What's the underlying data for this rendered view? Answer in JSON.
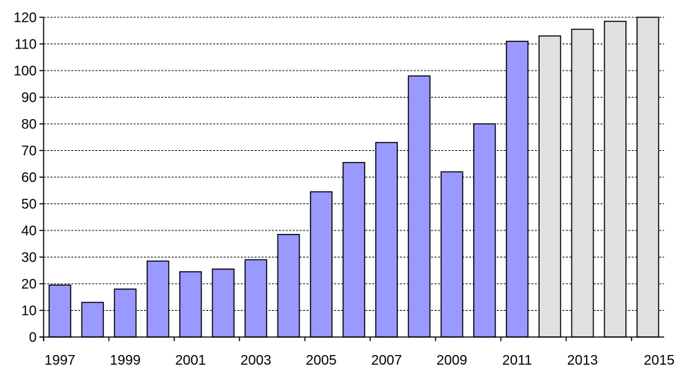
{
  "chart_data": {
    "type": "bar",
    "categories": [
      "1997",
      "1998",
      "1999",
      "2000",
      "2001",
      "2002",
      "2003",
      "2004",
      "2005",
      "2006",
      "2007",
      "2008",
      "2009",
      "2010",
      "2011",
      "2012",
      "2013",
      "2014",
      "2015"
    ],
    "tick_labels": [
      "1997",
      "1999",
      "2001",
      "2003",
      "2005",
      "2007",
      "2009",
      "2011",
      "2013",
      "2015"
    ],
    "series": [
      {
        "values": [
          19.5,
          13,
          18,
          28.5,
          24.5,
          25.5,
          29,
          38.5,
          54.5,
          65.5,
          73,
          98,
          62,
          80,
          111,
          null,
          null,
          null,
          null
        ]
      },
      {
        "values": [
          null,
          null,
          null,
          null,
          null,
          null,
          null,
          null,
          null,
          null,
          null,
          null,
          null,
          null,
          null,
          113,
          115.5,
          118.5,
          120
        ]
      }
    ],
    "colors": {
      "actual": "#9999FF",
      "projected": "#E0E0E0",
      "outline": "#000000",
      "grid": "#000000"
    },
    "title": "",
    "xlabel": "",
    "ylabel": "",
    "ylim": [
      0,
      120
    ],
    "yticks": [
      0,
      10,
      20,
      30,
      40,
      50,
      60,
      70,
      80,
      90,
      100,
      110,
      120
    ],
    "grid": "horizontal-dashed",
    "legend": "none"
  }
}
